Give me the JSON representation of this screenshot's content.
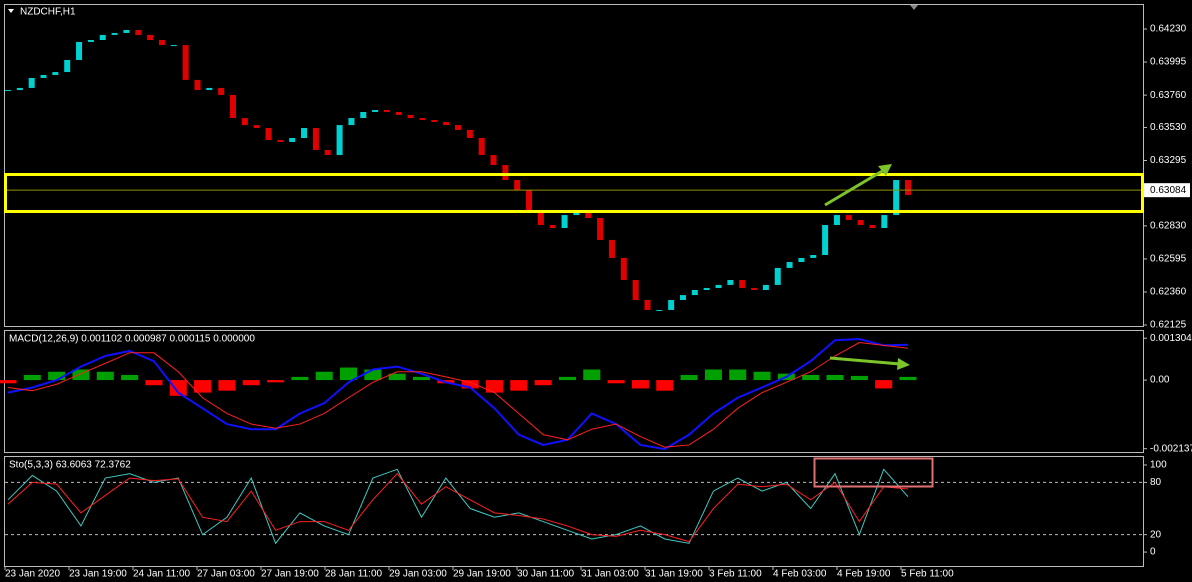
{
  "chart_data": [
    {
      "type": "candlestick",
      "title": "NZDCHF,H1",
      "values": [
        0.63796,
        0.63811,
        0.63882,
        0.63903,
        0.63924,
        0.6401,
        0.64138,
        0.64152,
        0.64188,
        0.64202,
        0.64223,
        0.64188,
        0.64152,
        0.64116,
        0.64116,
        0.63868,
        0.63796,
        0.63811,
        0.63761,
        0.63597,
        0.63547,
        0.63526,
        0.63441,
        0.63427,
        0.63455,
        0.63526,
        0.6337,
        0.63334,
        0.63547,
        0.63597,
        0.6364,
        0.63654,
        0.6364,
        0.63619,
        0.63597,
        0.63583,
        0.63569,
        0.63547,
        0.63512,
        0.63455,
        0.63334,
        0.63263,
        0.63156,
        0.63085,
        0.62943,
        0.62836,
        0.62815,
        0.62907,
        0.62929,
        0.62886,
        0.6273,
        0.62602,
        0.62445,
        0.62303,
        0.62232,
        0.62232,
        0.62303,
        0.62338,
        0.62374,
        0.62388,
        0.6241,
        0.62445,
        0.62388,
        0.62374,
        0.6241,
        0.62531,
        0.62573,
        0.62602,
        0.62623,
        0.62836,
        0.62907,
        0.62872,
        0.62836,
        0.62815,
        0.62907,
        0.63156,
        0.6305
      ],
      "colors": {
        "up": "#00d2d2",
        "down": "#e00000"
      },
      "ylim": [
        0.62118,
        0.64408
      ],
      "yticks": [
        {
          "value": 0.6423,
          "label": "0.64230"
        },
        {
          "value": 0.63995,
          "label": "0.63995"
        },
        {
          "value": 0.6376,
          "label": "0.63760"
        },
        {
          "value": 0.6353,
          "label": "0.63530"
        },
        {
          "value": 0.63295,
          "label": "0.63295"
        },
        {
          "value": 0.6283,
          "label": "0.62830"
        },
        {
          "value": 0.62595,
          "label": "0.62595"
        },
        {
          "value": 0.6236,
          "label": "0.62360"
        },
        {
          "value": 0.62125,
          "label": "0.62125"
        }
      ],
      "current_price": 0.63084,
      "x_labels": [
        "23 Jan 2020",
        "23 Jan 19:00",
        "24 Jan 11:00",
        "27 Jan 03:00",
        "27 Jan 19:00",
        "28 Jan 11:00",
        "29 Jan 03:00",
        "29 Jan 19:00",
        "30 Jan 11:00",
        "31 Jan 03:00",
        "31 Jan 19:00",
        "3 Feb 11:00",
        "4 Feb 03:00",
        "4 Feb 19:00",
        "5 Feb 11:00"
      ]
    },
    {
      "type": "macd",
      "title": "MACD(12,26,9) 0.001102 0.000987 0.000115 0.000000",
      "series": [
        {
          "style": "histogram",
          "color": "#00a000",
          "negative_color": "#ff0000",
          "values": [
            -0.0001,
            0.00016,
            0.00026,
            0.00033,
            0.00026,
            0.00016,
            -0.00016,
            -0.00049,
            -0.00039,
            -0.00033,
            -0.00016,
            -7e-05,
            0.0001,
            0.00026,
            0.00039,
            0.00033,
            0.0002,
            0.0001,
            -0.0001,
            -0.00026,
            -0.00039,
            -0.00033,
            -0.00016,
            0.0001,
            0.00033,
            -0.0001,
            -0.00026,
            -0.00033,
            0.00016,
            0.00033,
            0.00033,
            0.00026,
            0.0002,
            0.00016,
            0.00016,
            0.00013,
            -0.00026,
            0.0001
          ]
        },
        {
          "style": "line",
          "color": "#1010ff",
          "values": [
            -0.00039,
            -0.00023,
            0,
            0.00042,
            0.00075,
            0.00091,
            0.00059,
            -0.00039,
            -0.00088,
            -0.00137,
            -0.00153,
            -0.00153,
            -0.00104,
            -0.00072,
            -7e-05,
            0.00033,
            0.00042,
            0.0002,
            -7e-05,
            -0.00023,
            -0.00088,
            -0.0017,
            -0.00202,
            -0.00186,
            -0.00104,
            -0.00137,
            -0.00202,
            -0.00215,
            -0.0017,
            -0.00104,
            -0.00055,
            -0.00023,
            0.0001,
            0.00059,
            0.00124,
            0.00128,
            0.00108,
            0.0011
          ]
        },
        {
          "style": "line",
          "color": "#ff2020",
          "values": [
            -0.00023,
            -0.00033,
            -0.00013,
            0.0002,
            0.00052,
            0.00085,
            0.00085,
            0.00026,
            -0.00055,
            -0.00104,
            -0.00137,
            -0.0015,
            -0.00137,
            -0.00104,
            -0.00055,
            -7e-05,
            0.00026,
            0.00026,
            0.0001,
            -7e-05,
            -0.00039,
            -0.00104,
            -0.0017,
            -0.00186,
            -0.00153,
            -0.00137,
            -0.00176,
            -0.00209,
            -0.00202,
            -0.00153,
            -0.00088,
            -0.00039,
            -7e-05,
            0.00026,
            0.00075,
            0.00117,
            0.00108,
            0.00099
          ]
        }
      ],
      "ylim": [
        -0.00224,
        0.00156
      ],
      "yticks": [
        0.001304,
        {
          "value": 0,
          "label": "0.00"
        },
        -0.002137
      ]
    },
    {
      "type": "stochastic",
      "title": "Sto(5,3,3) 63.6063 72.3762",
      "series": [
        {
          "style": "line",
          "color": "#40c8c0",
          "values": [
            60,
            88,
            70,
            30,
            85,
            90,
            80,
            85,
            20,
            40,
            85,
            10,
            45,
            30,
            20,
            85,
            95,
            40,
            85,
            50,
            40,
            45,
            35,
            25,
            15,
            20,
            30,
            15,
            10,
            70,
            85,
            70,
            80,
            50,
            90,
            20,
            95,
            63.61
          ]
        },
        {
          "style": "line",
          "color": "#ff2020",
          "values": [
            55,
            80,
            78,
            45,
            65,
            85,
            82,
            84,
            40,
            35,
            70,
            25,
            35,
            35,
            25,
            60,
            90,
            55,
            75,
            60,
            45,
            42,
            38,
            30,
            20,
            18,
            25,
            20,
            12,
            50,
            78,
            75,
            78,
            60,
            80,
            35,
            75,
            72.38
          ]
        }
      ],
      "ylim": [
        -16,
        110.3
      ],
      "yticks": [
        100,
        80,
        20,
        0
      ],
      "levels": [
        80,
        20
      ]
    }
  ]
}
